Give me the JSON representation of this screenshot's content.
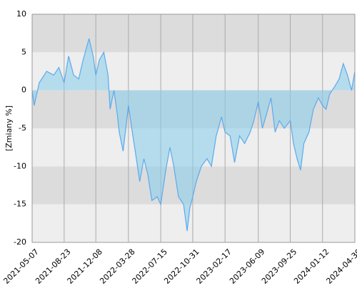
{
  "chart_data": {
    "type": "area",
    "ylabel": "[Zmiany %]",
    "x": [
      "2021-05-07",
      "2021-05-14",
      "2021-05-31",
      "2021-06-25",
      "2021-07-19",
      "2021-08-05",
      "2021-08-23",
      "2021-09-07",
      "2021-09-24",
      "2021-10-11",
      "2021-10-26",
      "2021-11-15",
      "2021-11-29",
      "2021-12-08",
      "2021-12-20",
      "2022-01-04",
      "2022-01-18",
      "2022-01-25",
      "2022-02-07",
      "2022-02-18",
      "2022-02-25",
      "2022-03-10",
      "2022-03-28",
      "2022-04-08",
      "2022-04-20",
      "2022-05-05",
      "2022-05-19",
      "2022-06-01",
      "2022-06-15",
      "2022-07-03",
      "2022-07-15",
      "2022-08-01",
      "2022-08-15",
      "2022-08-28",
      "2022-09-13",
      "2022-09-30",
      "2022-10-12",
      "2022-10-21",
      "2022-10-31",
      "2022-11-12",
      "2022-11-29",
      "2022-12-18",
      "2023-01-02",
      "2023-01-18",
      "2023-02-05",
      "2023-02-17",
      "2023-03-06",
      "2023-03-21",
      "2023-04-07",
      "2023-04-24",
      "2023-05-13",
      "2023-05-25",
      "2023-06-09",
      "2023-06-23",
      "2023-07-08",
      "2023-07-22",
      "2023-08-05",
      "2023-08-19",
      "2023-09-05",
      "2023-09-25",
      "2023-10-06",
      "2023-10-18",
      "2023-10-30",
      "2023-11-10",
      "2023-11-27",
      "2023-12-12",
      "2023-12-29",
      "2024-01-12",
      "2024-01-24",
      "2024-02-05",
      "2024-02-22",
      "2024-03-08",
      "2024-03-22",
      "2024-04-05",
      "2024-04-19",
      "2024-04-30"
    ],
    "values": [
      0,
      -2,
      1,
      2.5,
      2,
      3,
      1,
      4.5,
      2,
      1.5,
      4,
      6.8,
      4.5,
      2,
      4,
      5,
      2,
      -2.5,
      0,
      -3,
      -5.5,
      -8,
      -2,
      -5,
      -8,
      -12,
      -9,
      -11,
      -14.5,
      -14,
      -15,
      -10.5,
      -7.5,
      -10,
      -14,
      -15,
      -18.5,
      -15.5,
      -14,
      -12,
      -10,
      -9,
      -10,
      -6,
      -3.5,
      -5.5,
      -6,
      -9.5,
      -6,
      -7,
      -5.5,
      -4,
      -1.5,
      -5,
      -3,
      -1,
      -5.5,
      -4,
      -5,
      -4,
      -7,
      -9,
      -10.5,
      -7,
      -5.5,
      -2.5,
      -1,
      -2,
      -2.5,
      -0.5,
      0.5,
      1.5,
      3.5,
      2,
      0,
      2.5
    ],
    "color": "#5aaaee",
    "fill_color": "#87ceeb",
    "xlim": [
      "2021-05-07",
      "2024-04-30"
    ],
    "xticks": [
      "2021-05-07",
      "2021-08-23",
      "2021-12-08",
      "2022-03-28",
      "2022-07-15",
      "2022-10-31",
      "2023-02-17",
      "2023-06-09",
      "2023-09-25",
      "2024-01-12",
      "2024-04-30"
    ],
    "ylim": [
      -20,
      10
    ],
    "yticks": [
      -20,
      -15,
      -10,
      -5,
      0,
      5,
      10
    ],
    "band_colors": [
      "#eeeeee",
      "#dcdcdc"
    ],
    "grid": true
  }
}
